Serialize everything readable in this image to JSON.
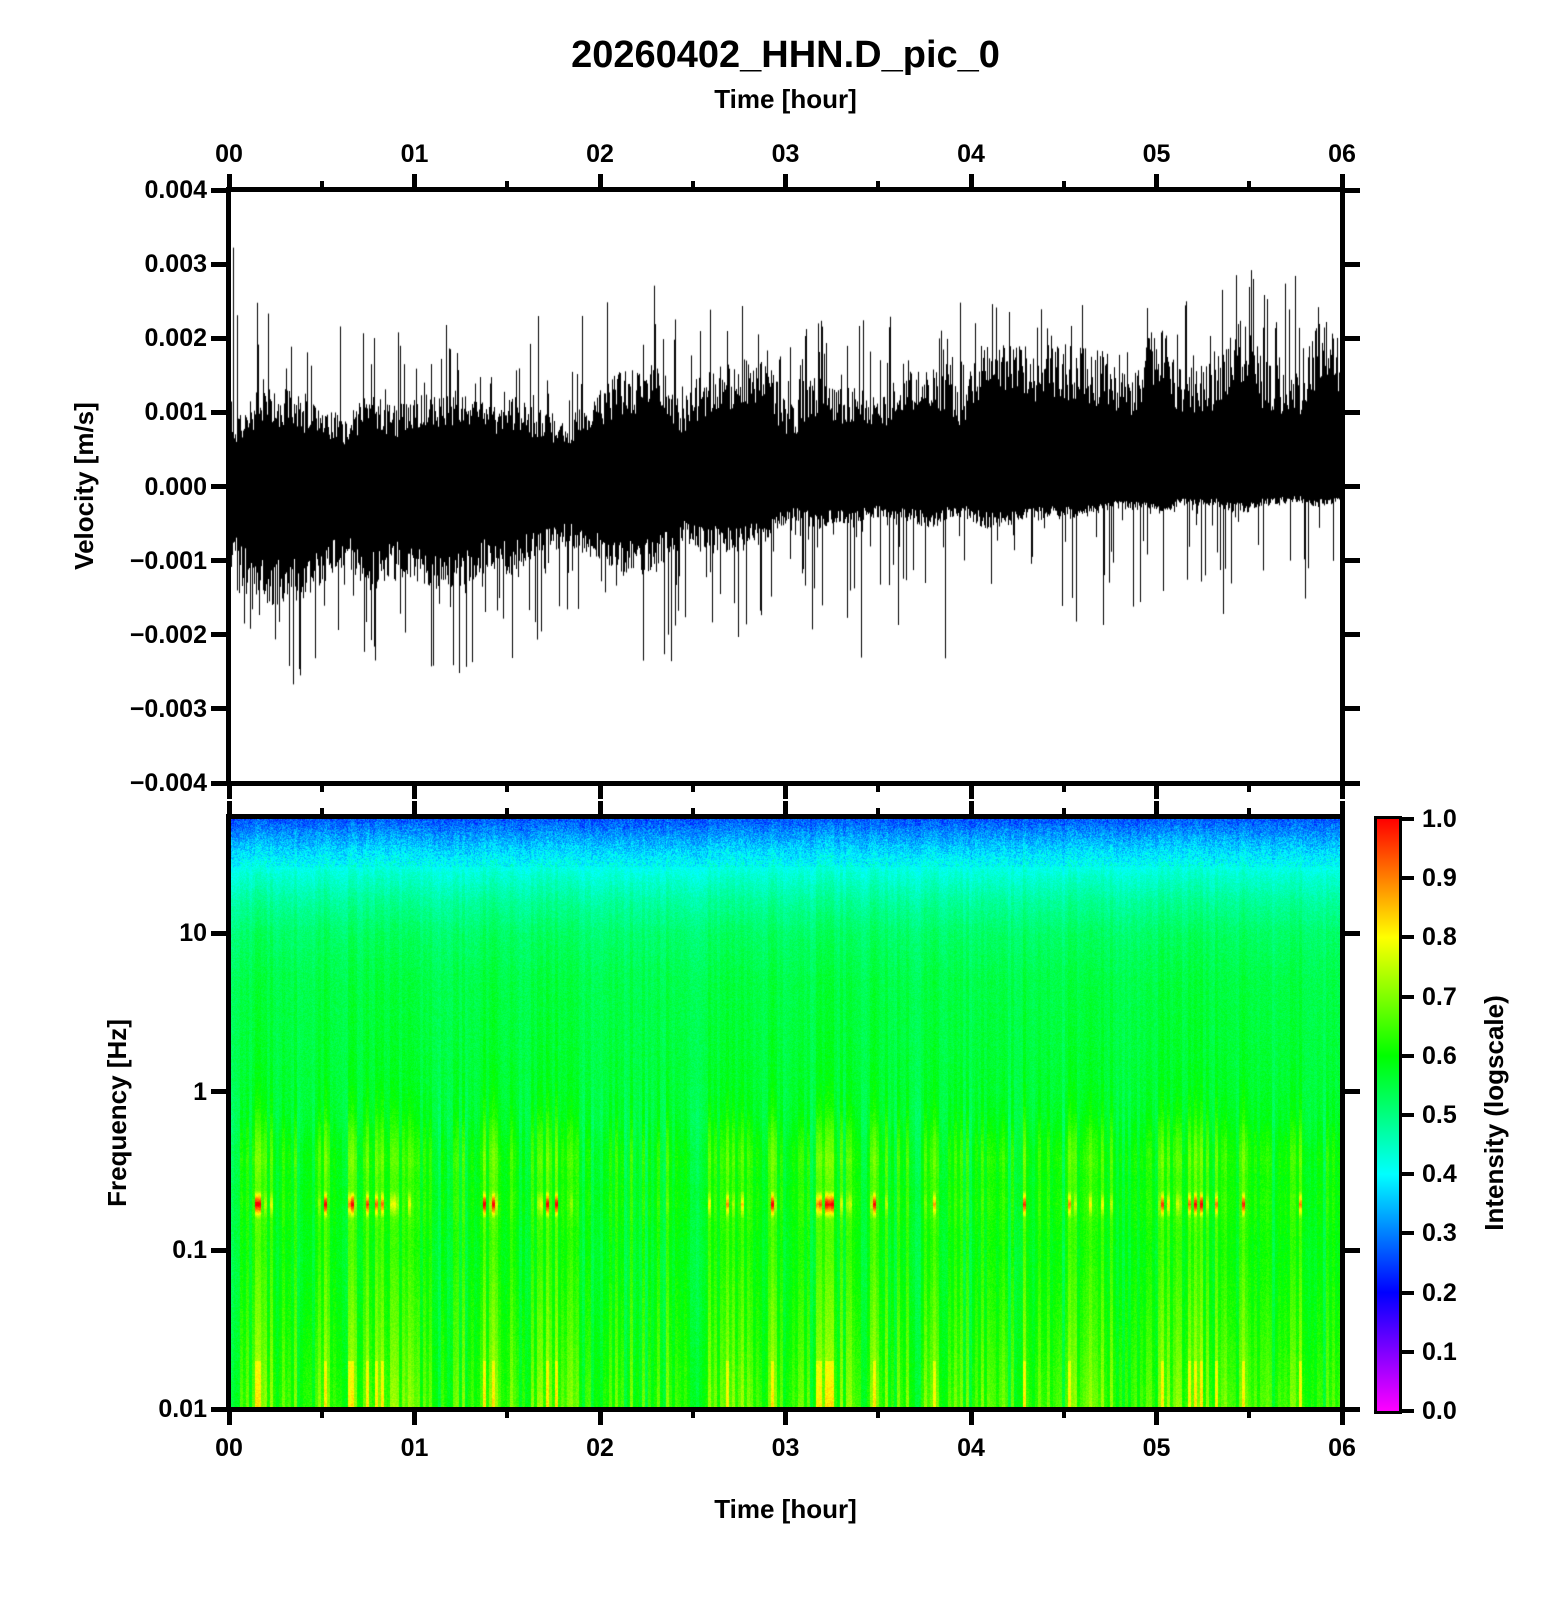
{
  "figure": {
    "title": "20260402_HHN.D_pic_0",
    "background_color": "#ffffff",
    "text_color": "#000000"
  },
  "chart_data": [
    {
      "id": "waveform",
      "type": "line",
      "title": "20260402_HHN.D_pic_0",
      "xlabel_top": "Time [hour]",
      "ylabel": "Velocity [m/s]",
      "xlim": [
        0,
        6
      ],
      "ylim": [
        -0.004,
        0.004
      ],
      "x_tick_labels": [
        "00",
        "01",
        "02",
        "03",
        "04",
        "05",
        "06"
      ],
      "x_tick_hours": [
        0,
        1,
        2,
        3,
        4,
        5,
        6
      ],
      "x_minor_tick_hours": [
        0.5,
        1.5,
        2.5,
        3.5,
        4.5,
        5.5
      ],
      "y_tick_labels": [
        "0.004",
        "0.003",
        "0.002",
        "0.001",
        "0.000",
        "−0.001",
        "−0.002",
        "−0.003",
        "−0.004"
      ],
      "y_tick_values": [
        0.004,
        0.003,
        0.002,
        0.001,
        0,
        -0.001,
        -0.002,
        -0.003,
        -0.004
      ],
      "line_color": "#000000",
      "description": "continuous seismic noise trace; dense band drifts upward over 6 hours",
      "envelope": {
        "t_hours": [
          0,
          0.25,
          0.5,
          0.75,
          1,
          1.25,
          1.5,
          1.75,
          2,
          2.25,
          2.5,
          2.75,
          3,
          3.25,
          3.5,
          3.75,
          4,
          4.25,
          4.5,
          4.75,
          5,
          5.25,
          5.5,
          5.75,
          6
        ],
        "band_hi": [
          0.00115,
          0.00105,
          0.001,
          0.00098,
          0.001,
          0.00105,
          0.00108,
          0.00112,
          0.0012,
          0.00128,
          0.00132,
          0.00135,
          0.0014,
          0.00145,
          0.0015,
          0.00152,
          0.00155,
          0.00157,
          0.00155,
          0.0016,
          0.00163,
          0.00166,
          0.00172,
          0.00175,
          0.00172
        ],
        "band_lo": [
          -0.00135,
          -0.00128,
          -0.0012,
          -0.00112,
          -0.00108,
          -0.0011,
          -0.00108,
          -0.001,
          -0.00095,
          -0.0009,
          -0.00078,
          -0.00068,
          -0.0006,
          -0.00055,
          -0.0005,
          -0.00048,
          -0.00045,
          -0.00042,
          -0.00036,
          -0.00032,
          -0.00028,
          -0.00026,
          -0.00028,
          -0.00024,
          -0.00018
        ],
        "spike_hi": [
          0.0033,
          0.0024,
          0.00225,
          0.00215,
          0.00205,
          0.0023,
          0.0025,
          0.00225,
          0.00262,
          0.0028,
          0.00272,
          0.00245,
          0.0024,
          0.00242,
          0.00262,
          0.00252,
          0.0025,
          0.0026,
          0.00262,
          0.00252,
          0.0028,
          0.00262,
          0.003,
          0.00285,
          0.0027
        ],
        "spike_lo": [
          -0.00245,
          -0.00285,
          -0.00262,
          -0.00245,
          -0.0026,
          -0.00252,
          -0.00282,
          -0.00242,
          -0.00232,
          -0.00262,
          -0.00222,
          -0.00205,
          -0.00202,
          -0.00222,
          -0.00242,
          -0.00212,
          -0.0026,
          -0.00225,
          -0.00185,
          -0.00192,
          -0.00165,
          -0.00182,
          -0.002,
          -0.00172,
          -0.00145
        ]
      }
    },
    {
      "id": "spectrogram",
      "type": "heatmap",
      "xlabel": "Time [hour]",
      "ylabel": "Frequency [Hz]",
      "xlim": [
        0,
        6
      ],
      "freq_lim_hz": [
        0.01,
        54
      ],
      "y_scale": "log",
      "x_tick_labels": [
        "00",
        "01",
        "02",
        "03",
        "04",
        "05",
        "06"
      ],
      "x_tick_hours": [
        0,
        1,
        2,
        3,
        4,
        5,
        6
      ],
      "x_minor_tick_hours": [
        0.5,
        1.5,
        2.5,
        3.5,
        4.5,
        5.5
      ],
      "y_tick_labels": [
        "10",
        "1",
        "0.1",
        "0.01"
      ],
      "y_tick_values": [
        10,
        1,
        0.1,
        0.01
      ],
      "description": "blue at highest frequencies grading to green; yellow vertical striping below 1 Hz, strongest near 0.4 Hz and at lowest frequencies; sparse orange-red speckles near 0.2 Hz",
      "intensity_mean_profile": {
        "log10_freq": [
          1.73,
          1.6,
          1.5,
          1.38,
          1.2,
          1.0,
          0.7,
          0.3,
          0.0,
          -0.15,
          -0.3,
          -0.42,
          -0.55,
          -0.7,
          -0.85,
          -1.0,
          -1.3,
          -1.6,
          -1.85,
          -2.0
        ],
        "value": [
          0.26,
          0.33,
          0.38,
          0.43,
          0.48,
          0.52,
          0.545,
          0.555,
          0.565,
          0.575,
          0.6,
          0.615,
          0.605,
          0.615,
          0.605,
          0.6,
          0.615,
          0.63,
          0.645,
          0.655
        ]
      },
      "stripe_amplitude_profile": {
        "log10_freq": [
          1.73,
          1.2,
          0.5,
          0.1,
          -0.1,
          -0.25,
          -0.45,
          -0.6,
          -0.72,
          -0.9,
          -1.2,
          -1.6,
          -2.0
        ],
        "value": [
          0.015,
          0.02,
          0.022,
          0.03,
          0.05,
          0.075,
          0.09,
          0.07,
          0.08,
          0.065,
          0.075,
          0.085,
          0.1
        ]
      },
      "hot_speckle_band": {
        "log10_freq_range": [
          -0.8,
          -0.62
        ],
        "column_threshold": 0.78,
        "gain": 1.5
      },
      "colorbar": {
        "label": "Intensity (logscale)",
        "tick_labels": [
          "1.0",
          "0.9",
          "0.8",
          "0.7",
          "0.6",
          "0.5",
          "0.4",
          "0.3",
          "0.2",
          "0.1",
          "0.0"
        ],
        "tick_values": [
          1.0,
          0.9,
          0.8,
          0.7,
          0.6,
          0.5,
          0.4,
          0.3,
          0.2,
          0.1,
          0.0
        ],
        "colormap_note": "reversed rainbow: hue = 300*(1-value)",
        "colormap_stops": [
          "#ff00ff",
          "#8000ff",
          "#0000ff",
          "#0080ff",
          "#00ffff",
          "#00ff80",
          "#00ff00",
          "#80ff00",
          "#ffff00",
          "#ff8000",
          "#ff0000"
        ]
      }
    }
  ]
}
